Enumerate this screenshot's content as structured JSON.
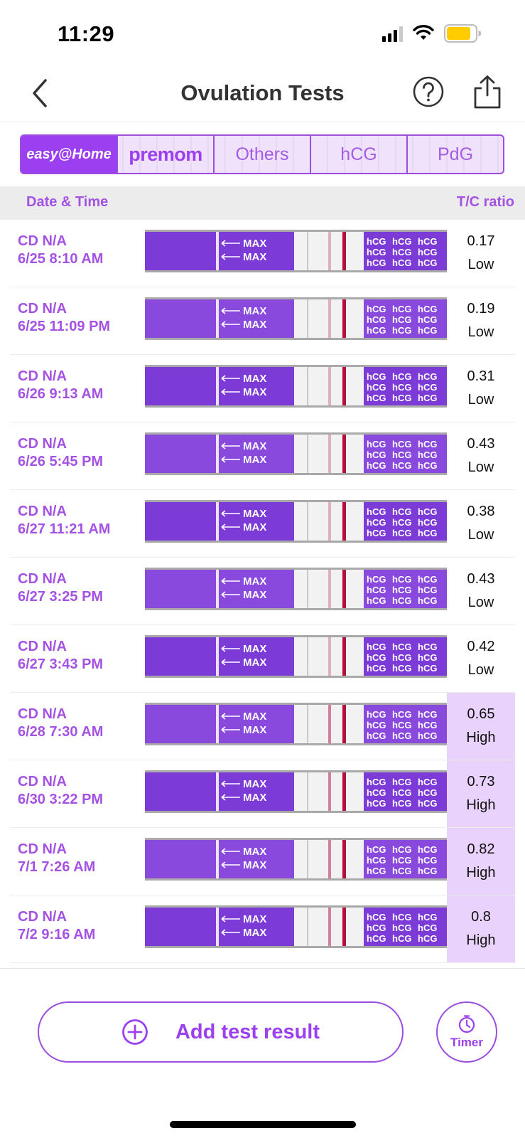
{
  "status_bar": {
    "time": "11:29"
  },
  "nav": {
    "title": "Ovulation Tests",
    "back_icon": "chevron-left-icon",
    "help_icon": "question-circle-icon",
    "share_icon": "share-icon"
  },
  "brand_tabs": [
    {
      "label": "easy@Home",
      "active": true
    },
    {
      "label": "premom",
      "active": false
    },
    {
      "label": "Others",
      "active": false
    },
    {
      "label": "hCG",
      "active": false
    },
    {
      "label": "PdG",
      "active": false
    }
  ],
  "table": {
    "date_header": "Date & Time",
    "tc_header": "T/C ratio",
    "strip_text": {
      "max": "MAX",
      "brand": "hCG"
    },
    "rows": [
      {
        "cd": "CD N/A",
        "datetime": "6/25 8:10 AM",
        "ratio": "0.17",
        "level": "Low",
        "high": false
      },
      {
        "cd": "CD N/A",
        "datetime": "6/25 11:09 PM",
        "ratio": "0.19",
        "level": "Low",
        "high": false
      },
      {
        "cd": "CD N/A",
        "datetime": "6/26 9:13 AM",
        "ratio": "0.31",
        "level": "Low",
        "high": false
      },
      {
        "cd": "CD N/A",
        "datetime": "6/26 5:45 PM",
        "ratio": "0.43",
        "level": "Low",
        "high": false
      },
      {
        "cd": "CD N/A",
        "datetime": "6/27 11:21 AM",
        "ratio": "0.38",
        "level": "Low",
        "high": false
      },
      {
        "cd": "CD N/A",
        "datetime": "6/27 3:25 PM",
        "ratio": "0.43",
        "level": "Low",
        "high": false
      },
      {
        "cd": "CD N/A",
        "datetime": "6/27 3:43 PM",
        "ratio": "0.42",
        "level": "Low",
        "high": false
      },
      {
        "cd": "CD N/A",
        "datetime": "6/28 7:30 AM",
        "ratio": "0.65",
        "level": "High",
        "high": true
      },
      {
        "cd": "CD N/A",
        "datetime": "6/30 3:22 PM",
        "ratio": "0.73",
        "level": "High",
        "high": true
      },
      {
        "cd": "CD N/A",
        "datetime": "7/1 7:26 AM",
        "ratio": "0.82",
        "level": "High",
        "high": true
      },
      {
        "cd": "CD N/A",
        "datetime": "7/2 9:16 AM",
        "ratio": "0.8",
        "level": "High",
        "high": true
      }
    ]
  },
  "actions": {
    "add_label": "Add test result",
    "timer_label": "Timer"
  },
  "colors": {
    "accent": "#9b3ff0",
    "accent_text": "#a352e3",
    "high_bg": "#e9d2fb",
    "strip_purple": "#7c3ad6"
  }
}
